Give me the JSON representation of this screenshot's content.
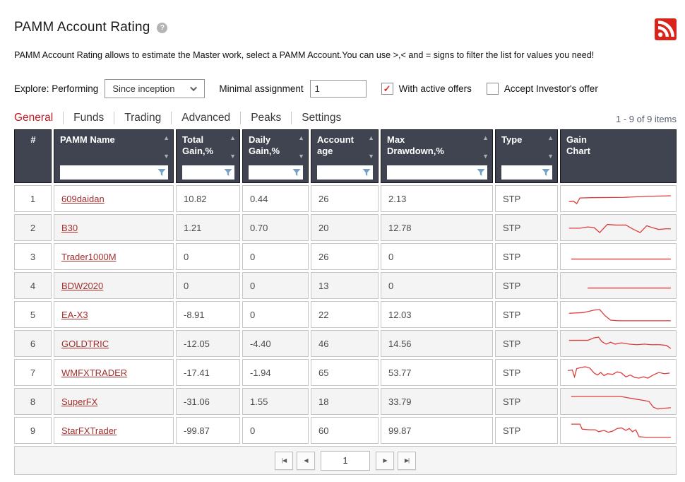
{
  "page": {
    "title": "PAMM Account Rating",
    "help_icon_glyph": "?",
    "description": "PAMM Account Rating allows to estimate the Master work, select a PAMM Account.You can use >,< and = signs to filter the list for values you need!"
  },
  "controls": {
    "explore_label": "Explore:",
    "mode_label": "Performing",
    "period_value": "Since inception",
    "min_assign_label": "Minimal assignment",
    "min_assign_value": "1",
    "with_active_offers": {
      "label": "With active offers",
      "checked": true
    },
    "accept_investors_offer": {
      "label": "Accept Investor's offer",
      "checked": false
    },
    "check_glyph": "✓"
  },
  "tabs": [
    {
      "label": "General",
      "active": true
    },
    {
      "label": "Funds",
      "active": false
    },
    {
      "label": "Trading",
      "active": false
    },
    {
      "label": "Advanced",
      "active": false
    },
    {
      "label": "Peaks",
      "active": false
    },
    {
      "label": "Settings",
      "active": false
    }
  ],
  "meta": {
    "items_count": "1 - 9 of 9 items"
  },
  "table": {
    "sort_asc_glyph": "▲",
    "sort_desc_glyph": "▼",
    "columns": [
      {
        "label": "#",
        "sortable": false,
        "filterable": false,
        "center": true
      },
      {
        "label": "PAMM Name",
        "sortable": true,
        "filterable": true
      },
      {
        "label": "Total\nGain,%",
        "sortable": true,
        "filterable": true
      },
      {
        "label": "Daily\nGain,%",
        "sortable": true,
        "filterable": true
      },
      {
        "label": "Account\nage",
        "sortable": true,
        "filterable": true
      },
      {
        "label": "Max\nDrawdown,%",
        "sortable": true,
        "filterable": true
      },
      {
        "label": "Type",
        "sortable": true,
        "filterable": true
      },
      {
        "label": "Gain\nChart",
        "sortable": false,
        "filterable": false
      }
    ],
    "rows": [
      {
        "rank": "1",
        "name": "609daidan",
        "total_gain": "10.82",
        "daily_gain": "0.44",
        "age": "26",
        "max_drawdown": "2.13",
        "type": "STP",
        "spark": [
          [
            5,
            23
          ],
          [
            9,
            22
          ],
          [
            12,
            26
          ],
          [
            15,
            17
          ],
          [
            25,
            16.5
          ],
          [
            55,
            16
          ],
          [
            75,
            14.5
          ],
          [
            98,
            13.5
          ]
        ]
      },
      {
        "rank": "2",
        "name": "B30",
        "total_gain": "1.21",
        "daily_gain": "0.70",
        "age": "20",
        "max_drawdown": "12.78",
        "type": "STP",
        "spark": [
          [
            5,
            19
          ],
          [
            15,
            19
          ],
          [
            22,
            17
          ],
          [
            28,
            18
          ],
          [
            33,
            26
          ],
          [
            40,
            13
          ],
          [
            48,
            14
          ],
          [
            57,
            14
          ],
          [
            63,
            20
          ],
          [
            70,
            26
          ],
          [
            76,
            15
          ],
          [
            81,
            18
          ],
          [
            87,
            21
          ],
          [
            93,
            20
          ],
          [
            98,
            20
          ]
        ]
      },
      {
        "rank": "3",
        "name": "Trader1000M",
        "total_gain": "0",
        "daily_gain": "0",
        "age": "26",
        "max_drawdown": "0",
        "type": "STP",
        "spark": [
          [
            7,
            22
          ],
          [
            98,
            22
          ]
        ]
      },
      {
        "rank": "4",
        "name": "BDW2020",
        "total_gain": "0",
        "daily_gain": "0",
        "age": "13",
        "max_drawdown": "0",
        "type": "STP",
        "spark": [
          [
            22,
            22
          ],
          [
            98,
            22
          ]
        ]
      },
      {
        "rank": "5",
        "name": "EA-X3",
        "total_gain": "-8.91",
        "daily_gain": "0",
        "age": "22",
        "max_drawdown": "12.03",
        "type": "STP",
        "spark": [
          [
            5,
            16
          ],
          [
            18,
            15
          ],
          [
            28,
            11
          ],
          [
            33,
            10
          ],
          [
            38,
            20
          ],
          [
            43,
            27
          ],
          [
            50,
            28
          ],
          [
            98,
            28
          ]
        ]
      },
      {
        "rank": "6",
        "name": "GOLDTRIC",
        "total_gain": "-12.05",
        "daily_gain": "-4.40",
        "age": "46",
        "max_drawdown": "14.56",
        "type": "STP",
        "spark": [
          [
            5,
            13
          ],
          [
            22,
            13
          ],
          [
            28,
            9
          ],
          [
            32,
            8
          ],
          [
            35,
            15
          ],
          [
            39,
            19
          ],
          [
            43,
            16
          ],
          [
            47,
            19
          ],
          [
            53,
            17
          ],
          [
            60,
            19
          ],
          [
            67,
            20
          ],
          [
            74,
            19
          ],
          [
            80,
            20
          ],
          [
            88,
            20
          ],
          [
            94,
            21
          ],
          [
            98,
            26
          ]
        ]
      },
      {
        "rank": "7",
        "name": "WMFXTRADER",
        "total_gain": "-17.41",
        "daily_gain": "-1.94",
        "age": "65",
        "max_drawdown": "53.77",
        "type": "STP",
        "spark": [
          [
            4,
            15
          ],
          [
            8,
            14
          ],
          [
            10,
            25
          ],
          [
            12,
            12
          ],
          [
            16,
            10
          ],
          [
            20,
            9
          ],
          [
            24,
            11
          ],
          [
            28,
            19
          ],
          [
            31,
            22
          ],
          [
            34,
            18
          ],
          [
            37,
            23
          ],
          [
            40,
            20
          ],
          [
            45,
            21
          ],
          [
            49,
            17
          ],
          [
            53,
            19
          ],
          [
            57,
            25
          ],
          [
            61,
            22
          ],
          [
            65,
            26
          ],
          [
            69,
            27
          ],
          [
            73,
            25
          ],
          [
            77,
            27
          ],
          [
            82,
            22
          ],
          [
            87,
            18
          ],
          [
            92,
            20
          ],
          [
            97,
            19
          ]
        ]
      },
      {
        "rank": "8",
        "name": "SuperFX",
        "total_gain": "-31.06",
        "daily_gain": "1.55",
        "age": "18",
        "max_drawdown": "33.79",
        "type": "STP",
        "spark": [
          [
            7,
            10
          ],
          [
            52,
            10
          ],
          [
            58,
            12
          ],
          [
            65,
            14
          ],
          [
            72,
            16
          ],
          [
            78,
            18
          ],
          [
            82,
            27
          ],
          [
            86,
            30
          ],
          [
            91,
            29
          ],
          [
            98,
            28
          ]
        ]
      },
      {
        "rank": "9",
        "name": "StarFXTrader",
        "total_gain": "-99.87",
        "daily_gain": "0",
        "age": "60",
        "max_drawdown": "99.87",
        "type": "STP",
        "spark": [
          [
            7,
            8
          ],
          [
            15,
            8
          ],
          [
            17,
            16
          ],
          [
            24,
            17
          ],
          [
            29,
            17
          ],
          [
            32,
            20
          ],
          [
            37,
            18
          ],
          [
            41,
            21
          ],
          [
            45,
            19
          ],
          [
            49,
            15
          ],
          [
            53,
            14
          ],
          [
            57,
            18
          ],
          [
            60,
            15
          ],
          [
            63,
            20
          ],
          [
            66,
            17
          ],
          [
            69,
            28
          ],
          [
            75,
            29
          ],
          [
            98,
            29
          ]
        ]
      }
    ]
  },
  "pagination": {
    "first_glyph": "|◀",
    "prev_glyph": "◀",
    "page_value": "1",
    "next_glyph": "▶",
    "last_glyph": "▶|"
  },
  "colors": {
    "accent_red": "#d8251c",
    "active_tab_red": "#c2181f",
    "link_red": "#a42f2f",
    "chart_line_red": "#dd3c3c",
    "header_bg": "#3f4450",
    "filter_icon_blue": "#76a0c6"
  }
}
